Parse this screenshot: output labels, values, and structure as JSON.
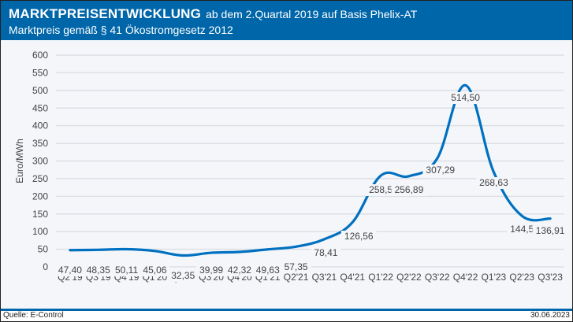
{
  "header": {
    "title": "MARKTPREISENTWICKLUNG",
    "title_suffix": "ab dem 2.Quartal 2019 auf Basis Phelix-AT",
    "subtitle": "Marktpreis gemäß § 41 Ökostromgesetz  2012"
  },
  "footer": {
    "source": "Quelle: E-Control",
    "date": "30.06.2023"
  },
  "colors": {
    "header_bg": "#0066aa",
    "line": "#0070c0",
    "plot_bg": "#f4f6fa",
    "grid": "#dcdfe4"
  },
  "chart_data": {
    "type": "line",
    "title": "MARKTPREISENTWICKLUNG ab dem 2.Quartal 2019 auf Basis Phelix-AT",
    "subtitle": "Marktpreis gemäß § 41 Ökostromgesetz 2012",
    "xlabel": "",
    "ylabel": "Euro/MWh",
    "ylim": [
      0,
      600
    ],
    "yticks": [
      0,
      50,
      100,
      150,
      200,
      250,
      300,
      350,
      400,
      450,
      500,
      550,
      600
    ],
    "grid": true,
    "legend": "none",
    "categories": [
      "Q2'19",
      "Q3'19",
      "Q4'19",
      "Q1'20",
      "Q2'20",
      "Q3'20",
      "Q4'20",
      "Q1'21",
      "Q2'21",
      "Q3'21",
      "Q4'21",
      "Q1'22",
      "Q2'22",
      "Q3'22",
      "Q4'22",
      "Q1'23",
      "Q2'23",
      "Q3'23"
    ],
    "series": [
      {
        "name": "Marktpreis",
        "values": [
          47.4,
          48.35,
          50.11,
          45.06,
          32.35,
          39.99,
          42.32,
          49.63,
          57.35,
          78.41,
          126.56,
          258.5,
          256.89,
          307.29,
          514.5,
          268.63,
          144.5,
          136.91
        ],
        "labels": [
          "47,40",
          "48,35",
          "50,11",
          "45,06",
          "32,35",
          "39,99",
          "42,32",
          "49,63",
          "57,35",
          "78,41",
          "126,56",
          "258,5",
          "256,89",
          "307,29",
          "514,50",
          "268,63",
          "144,5",
          "136,91"
        ]
      }
    ]
  }
}
